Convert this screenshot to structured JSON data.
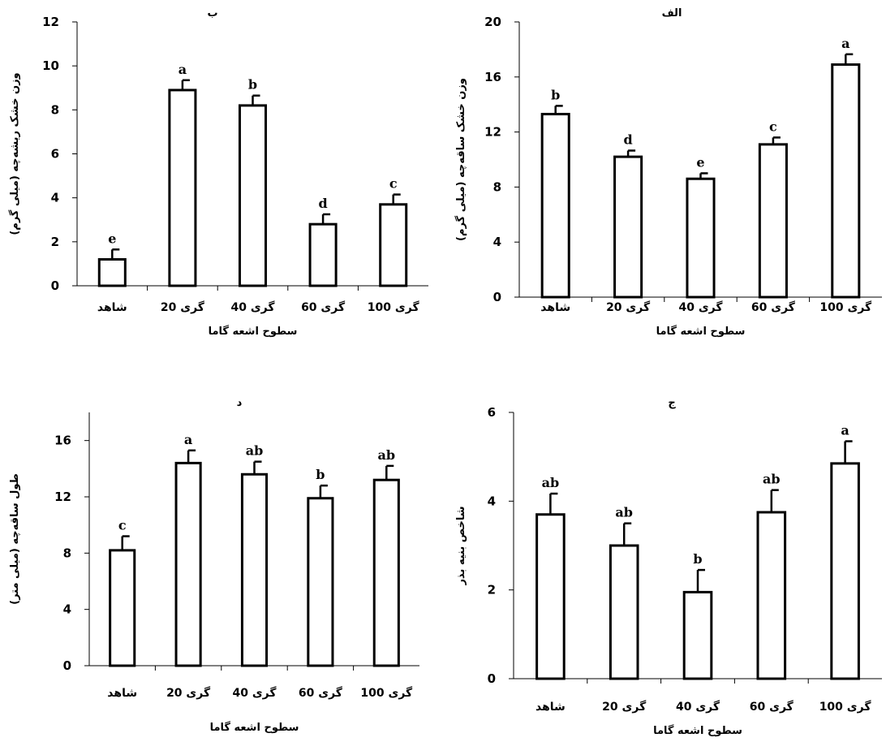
{
  "chart_data": [
    {
      "id": "panel-b",
      "type": "bar",
      "title": "ب",
      "xlabel": "سطوح اشعه گاما",
      "ylabel": "وزن خشک ریشه‌چه (میلی گرم)",
      "categories": [
        "شاهد",
        "20 گری",
        "40 گری",
        "60 گری",
        "100 گری"
      ],
      "values": [
        1.2,
        8.9,
        8.2,
        2.8,
        3.7
      ],
      "errors": [
        0.45,
        0.45,
        0.45,
        0.45,
        0.45
      ],
      "significance": [
        "e",
        "a",
        "b",
        "d",
        "c"
      ],
      "ylim": [
        0,
        12
      ],
      "yticks": [
        0,
        2,
        4,
        6,
        8,
        10,
        12
      ]
    },
    {
      "id": "panel-alef",
      "type": "bar",
      "title": "الف",
      "xlabel": "سطوح اشعه گاما",
      "ylabel": "وزن خشک ساقه‌چه (میلی گرم)",
      "categories": [
        "شاهد",
        "20 گری",
        "40 گری",
        "60 گری",
        "100 گری"
      ],
      "values": [
        13.3,
        10.2,
        8.6,
        11.1,
        16.9
      ],
      "errors": [
        0.6,
        0.45,
        0.4,
        0.5,
        0.75
      ],
      "significance": [
        "b",
        "d",
        "e",
        "c",
        "a"
      ],
      "ylim": [
        0,
        20
      ],
      "yticks": [
        0,
        4,
        8,
        12,
        16,
        20
      ]
    },
    {
      "id": "panel-dal",
      "type": "bar",
      "title": "د",
      "xlabel": "سطوح اشعه گاما",
      "ylabel": "طول ساقه‌چه (میلی متر)",
      "categories": [
        "شاهد",
        "20 گری",
        "40 گری",
        "60 گری",
        "100 گری"
      ],
      "values": [
        8.2,
        14.4,
        13.6,
        11.9,
        13.2
      ],
      "errors": [
        1.0,
        0.9,
        0.9,
        0.9,
        1.0
      ],
      "significance": [
        "c",
        "a",
        "ab",
        "b",
        "ab"
      ],
      "ylim": [
        0,
        18
      ],
      "yticks": [
        0,
        4,
        8,
        12,
        16
      ]
    },
    {
      "id": "panel-jim",
      "type": "bar",
      "title": "ج",
      "xlabel": "سطوح اشعه گاما",
      "ylabel": "شاخص بنیه بذر",
      "categories": [
        "شاهد",
        "20 گری",
        "40 گری",
        "60 گری",
        "100 گری"
      ],
      "values": [
        3.7,
        3.0,
        1.95,
        3.75,
        4.85
      ],
      "errors": [
        0.47,
        0.5,
        0.5,
        0.5,
        0.5
      ],
      "significance": [
        "ab",
        "ab",
        "b",
        "ab",
        "a"
      ],
      "ylim": [
        0,
        6
      ],
      "yticks": [
        0,
        2,
        4,
        6
      ]
    }
  ]
}
